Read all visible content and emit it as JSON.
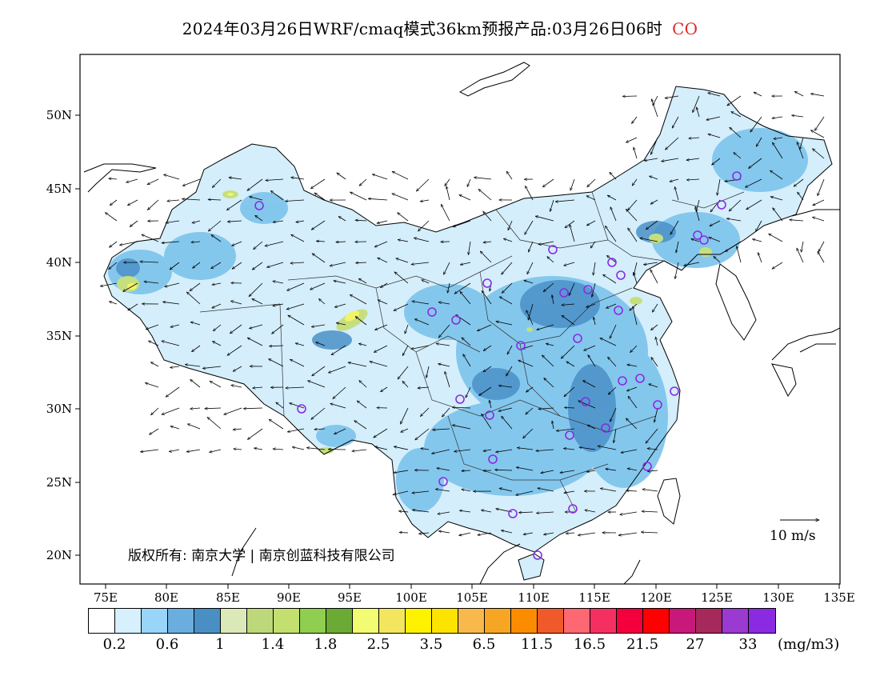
{
  "header": {
    "title": "2024年03月26日WRF/cmaq模式36km预报产品:03月26日06时",
    "pollutant": "CO"
  },
  "map": {
    "lat_labels": [
      "50N",
      "45N",
      "40N",
      "35N",
      "30N",
      "25N",
      "20N"
    ],
    "lon_labels": [
      "75E",
      "80E",
      "85E",
      "90E",
      "95E",
      "100E",
      "105E",
      "110E",
      "115E",
      "120E",
      "125E",
      "130E",
      "135E"
    ],
    "copyright": "版权所有: 南京大学 | 南京创蓝科技有限公司",
    "wind_scale_label": "10 m/s",
    "colors": {
      "blue_light": "#d4eefb",
      "blue_mid": "#7cc3ec",
      "blue_dark": "#4a90c8",
      "green": "#c6df7e",
      "yellow": "#f3f36a",
      "station": "#8a2be2"
    }
  },
  "colorbar": {
    "colors": [
      "#ffffff",
      "#d6f0fd",
      "#99d5f8",
      "#6aaedf",
      "#4a8fc4",
      "#dbe9b9",
      "#bcd87a",
      "#c2df70",
      "#8fce4e",
      "#6aaa35",
      "#f2fb72",
      "#f3e65e",
      "#fff200",
      "#fde400",
      "#f8b84b",
      "#f7a623",
      "#fb8c00",
      "#f05a2b",
      "#fd6872",
      "#f53060",
      "#f3003d",
      "#ff0000",
      "#c8187a",
      "#a52a5b",
      "#9a3ad1",
      "#8a2be2"
    ],
    "labels": [
      "0.2",
      "0.6",
      "1",
      "1.4",
      "1.8",
      "2.5",
      "3.5",
      "6.5",
      "11.5",
      "16.5",
      "21.5",
      "27",
      "33"
    ],
    "unit": "(mg/m3)"
  }
}
